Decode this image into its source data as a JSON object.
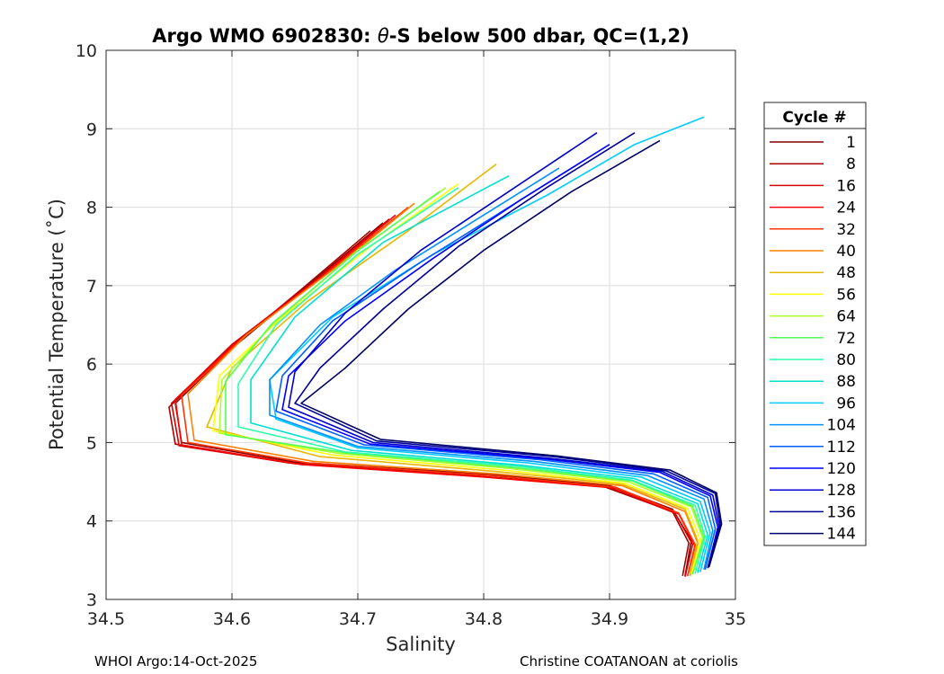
{
  "chart_data": {
    "type": "line",
    "title_prefix": "Argo WMO 6902830: ",
    "title_theta": "θ",
    "title_suffix": "-S below 500 dbar,  QC=(1,2)",
    "xlabel": "Salinity",
    "ylabel": "Potential Temperature (˚C)",
    "xlim": [
      34.5,
      35.0
    ],
    "ylim": [
      3,
      10
    ],
    "xticks": [
      "34.5",
      "34.6",
      "34.7",
      "34.8",
      "34.9",
      "35"
    ],
    "yticks": [
      "3",
      "4",
      "5",
      "6",
      "7",
      "8",
      "9",
      "10"
    ],
    "grid": true,
    "legend": {
      "title": "Cycle #",
      "position": "right",
      "entries": [
        {
          "label": "1",
          "color": "#800000"
        },
        {
          "label": "8",
          "color": "#aa0000"
        },
        {
          "label": "16",
          "color": "#d40000"
        },
        {
          "label": "24",
          "color": "#ff0000"
        },
        {
          "label": "32",
          "color": "#ff3300"
        },
        {
          "label": "40",
          "color": "#ff8000"
        },
        {
          "label": "48",
          "color": "#e6b800"
        },
        {
          "label": "56",
          "color": "#ffff00"
        },
        {
          "label": "64",
          "color": "#aaff2a"
        },
        {
          "label": "72",
          "color": "#55ff55"
        },
        {
          "label": "80",
          "color": "#2affaa"
        },
        {
          "label": "88",
          "color": "#00e0d0"
        },
        {
          "label": "96",
          "color": "#00ccff"
        },
        {
          "label": "104",
          "color": "#0090ff"
        },
        {
          "label": "112",
          "color": "#0060ff"
        },
        {
          "label": "120",
          "color": "#0000ff"
        },
        {
          "label": "128",
          "color": "#0000cc"
        },
        {
          "label": "136",
          "color": "#000099"
        },
        {
          "label": "144",
          "color": "#000066"
        }
      ]
    },
    "series": [
      {
        "name": "1",
        "S": [
          34.72,
          34.66,
          34.6,
          34.555,
          34.56,
          34.65,
          34.8,
          34.9,
          34.95,
          34.965,
          34.96
        ],
        "T": [
          7.8,
          7.0,
          6.2,
          5.5,
          5.0,
          4.75,
          4.6,
          4.45,
          4.15,
          3.75,
          3.3
        ]
      },
      {
        "name": "8",
        "S": [
          34.71,
          34.655,
          34.595,
          34.55,
          34.555,
          34.645,
          34.79,
          34.895,
          34.95,
          34.963,
          34.958
        ],
        "T": [
          7.7,
          6.95,
          6.15,
          5.45,
          4.98,
          4.74,
          4.58,
          4.44,
          4.12,
          3.72,
          3.3
        ]
      },
      {
        "name": "16",
        "S": [
          34.725,
          34.665,
          34.6,
          34.552,
          34.558,
          34.65,
          34.795,
          34.9,
          34.952,
          34.966,
          34.96
        ],
        "T": [
          7.85,
          7.05,
          6.25,
          5.5,
          4.96,
          4.73,
          4.57,
          4.43,
          4.1,
          3.7,
          3.29
        ]
      },
      {
        "name": "24",
        "S": [
          34.73,
          34.67,
          34.605,
          34.555,
          34.56,
          34.655,
          34.8,
          34.905,
          34.955,
          34.968,
          34.962
        ],
        "T": [
          7.9,
          7.1,
          6.3,
          5.55,
          4.97,
          4.72,
          4.56,
          4.42,
          4.09,
          3.68,
          3.3
        ]
      },
      {
        "name": "32",
        "S": [
          34.74,
          34.675,
          34.61,
          34.56,
          34.565,
          34.66,
          34.805,
          34.905,
          34.955,
          34.968,
          34.962
        ],
        "T": [
          8.0,
          7.15,
          6.35,
          5.6,
          5.0,
          4.74,
          4.58,
          4.43,
          4.1,
          3.7,
          3.3
        ]
      },
      {
        "name": "40",
        "S": [
          34.745,
          34.68,
          34.612,
          34.565,
          34.57,
          34.665,
          34.81,
          34.91,
          34.96,
          34.97,
          34.964
        ],
        "T": [
          8.05,
          7.2,
          6.38,
          5.62,
          5.03,
          4.76,
          4.6,
          4.45,
          4.12,
          3.72,
          3.3
        ]
      },
      {
        "name": "48",
        "S": [
          34.81,
          34.74,
          34.66,
          34.6,
          34.58,
          34.67,
          34.81,
          34.91,
          34.96,
          34.97,
          34.964
        ],
        "T": [
          8.55,
          7.7,
          6.8,
          5.95,
          5.2,
          4.82,
          4.63,
          4.47,
          4.15,
          3.75,
          3.32
        ]
      },
      {
        "name": "56",
        "S": [
          34.78,
          34.71,
          34.64,
          34.59,
          34.585,
          34.68,
          34.815,
          34.912,
          34.962,
          34.972,
          34.965
        ],
        "T": [
          8.3,
          7.5,
          6.6,
          5.85,
          5.15,
          4.84,
          4.65,
          4.48,
          4.16,
          3.76,
          3.32
        ]
      },
      {
        "name": "64",
        "S": [
          34.77,
          34.7,
          34.635,
          34.592,
          34.59,
          34.685,
          34.82,
          34.915,
          34.965,
          34.974,
          34.966
        ],
        "T": [
          8.25,
          7.45,
          6.55,
          5.8,
          5.12,
          4.86,
          4.67,
          4.5,
          4.18,
          3.78,
          3.32
        ]
      },
      {
        "name": "72",
        "S": [
          34.765,
          34.698,
          34.632,
          34.595,
          34.595,
          34.69,
          34.825,
          34.918,
          34.966,
          34.975,
          34.966
        ],
        "T": [
          8.2,
          7.42,
          6.52,
          5.78,
          5.1,
          4.87,
          4.68,
          4.51,
          4.19,
          3.79,
          3.32
        ]
      },
      {
        "name": "80",
        "S": [
          34.78,
          34.7,
          34.635,
          34.605,
          34.605,
          34.69,
          34.825,
          34.918,
          34.968,
          34.976,
          34.968
        ],
        "T": [
          8.25,
          7.4,
          6.5,
          5.75,
          5.2,
          4.88,
          4.7,
          4.52,
          4.2,
          3.8,
          3.33
        ]
      },
      {
        "name": "88",
        "S": [
          34.82,
          34.72,
          34.65,
          34.615,
          34.615,
          34.695,
          34.83,
          34.92,
          34.97,
          34.978,
          34.97
        ],
        "T": [
          8.4,
          7.55,
          6.6,
          5.8,
          5.25,
          4.9,
          4.71,
          4.54,
          4.22,
          3.82,
          3.34
        ]
      },
      {
        "name": "96",
        "S": [
          34.975,
          34.92,
          34.85,
          34.76,
          34.68,
          34.63,
          34.635,
          34.7,
          34.835,
          34.925,
          34.972,
          34.98,
          34.972
        ],
        "T": [
          9.15,
          8.8,
          8.15,
          7.4,
          6.6,
          5.8,
          5.3,
          4.93,
          4.74,
          4.56,
          4.25,
          3.85,
          3.35
        ]
      },
      {
        "name": "104",
        "S": [
          34.86,
          34.8,
          34.73,
          34.67,
          34.63,
          34.63,
          34.7,
          34.84,
          34.93,
          34.975,
          34.982,
          34.975
        ],
        "T": [
          8.5,
          7.9,
          7.2,
          6.5,
          5.8,
          5.35,
          4.95,
          4.76,
          4.58,
          4.28,
          3.88,
          3.38
        ]
      },
      {
        "name": "112",
        "S": [
          34.88,
          34.82,
          34.75,
          34.68,
          34.64,
          34.635,
          34.705,
          34.845,
          34.935,
          34.978,
          34.984,
          34.976
        ],
        "T": [
          8.6,
          8.0,
          7.3,
          6.55,
          5.85,
          5.4,
          4.97,
          4.78,
          4.6,
          4.3,
          3.9,
          3.38
        ]
      },
      {
        "name": "120",
        "S": [
          34.9,
          34.83,
          34.76,
          34.69,
          34.645,
          34.64,
          34.71,
          34.85,
          34.94,
          34.98,
          34.986,
          34.978
        ],
        "T": [
          8.8,
          8.1,
          7.35,
          6.55,
          5.85,
          5.42,
          4.98,
          4.79,
          4.62,
          4.32,
          3.92,
          3.4
        ]
      },
      {
        "name": "128",
        "S": [
          34.89,
          34.82,
          34.75,
          34.69,
          34.65,
          34.645,
          34.712,
          34.852,
          34.942,
          34.982,
          34.987,
          34.978
        ],
        "T": [
          8.95,
          8.2,
          7.45,
          6.65,
          5.9,
          5.45,
          5.0,
          4.8,
          4.63,
          4.33,
          3.94,
          3.4
        ]
      },
      {
        "name": "136",
        "S": [
          34.92,
          34.85,
          34.78,
          34.72,
          34.67,
          34.65,
          34.715,
          34.855,
          34.945,
          34.984,
          34.988,
          34.978
        ],
        "T": [
          8.95,
          8.25,
          7.5,
          6.7,
          5.95,
          5.5,
          5.02,
          4.82,
          4.64,
          4.35,
          3.95,
          3.4
        ]
      },
      {
        "name": "144",
        "S": [
          34.94,
          34.87,
          34.8,
          34.74,
          34.69,
          34.655,
          34.718,
          34.858,
          34.948,
          34.985,
          34.989,
          34.979
        ],
        "T": [
          8.85,
          8.2,
          7.45,
          6.7,
          5.95,
          5.5,
          5.04,
          4.83,
          4.65,
          4.36,
          3.96,
          3.41
        ]
      }
    ]
  },
  "footer": {
    "left": "WHOI Argo:14-Oct-2025",
    "right": "Christine COATANOAN at coriolis"
  }
}
